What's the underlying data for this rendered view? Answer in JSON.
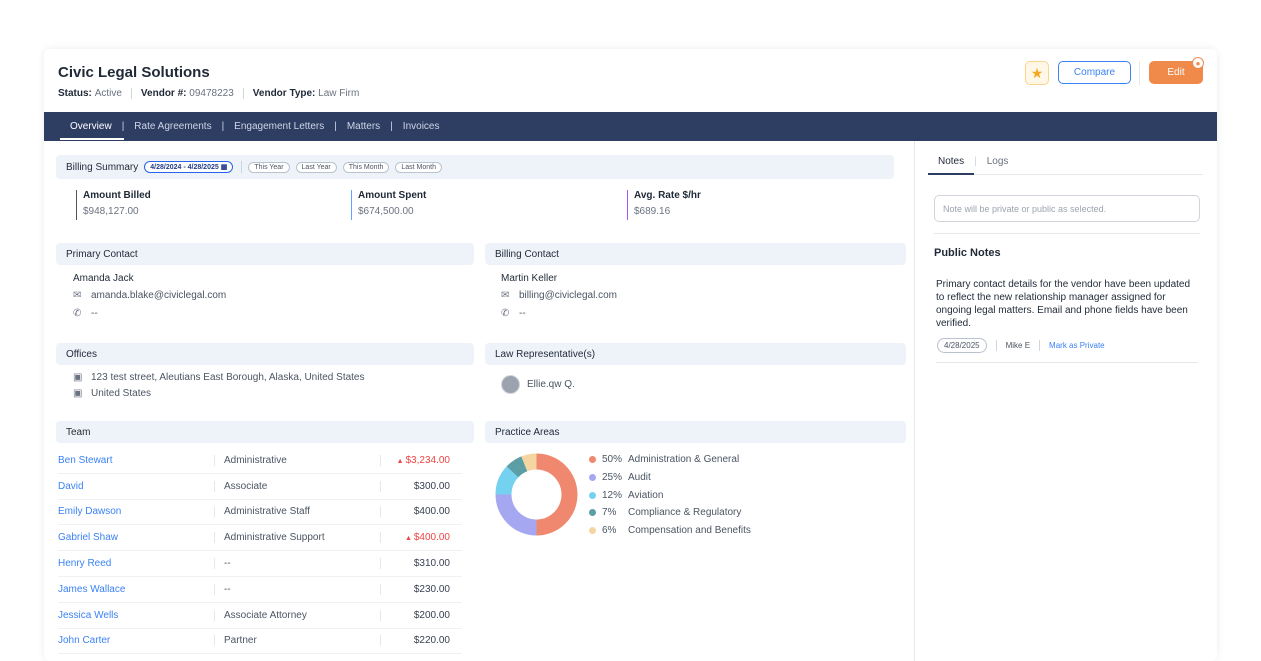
{
  "header": {
    "title": "Civic Legal Solutions",
    "status_label": "Status:",
    "status_value": "Active",
    "vendor_no_label": "Vendor #:",
    "vendor_no_value": "09478223",
    "vendor_type_label": "Vendor Type:",
    "vendor_type_value": "Law Firm",
    "compare_label": "Compare",
    "edit_label": "Edit"
  },
  "nav": {
    "tabs": [
      "Overview",
      "Rate Agreements",
      "Engagement Letters",
      "Matters",
      "Invoices"
    ],
    "active": "Overview"
  },
  "billing": {
    "label": "Billing Summary",
    "date_range": "4/28/2024 - 4/28/2025",
    "filters": [
      "This Year",
      "Last Year",
      "This Month",
      "Last Month"
    ],
    "stats": [
      {
        "label": "Amount Billed",
        "value": "$948,127.00",
        "color": "#555555"
      },
      {
        "label": "Amount Spent",
        "value": "$674,500.00",
        "color": "#60a5fa"
      },
      {
        "label": "Avg. Rate $/hr",
        "value": "$689.16",
        "color": "#a855f7"
      }
    ]
  },
  "primary_contact": {
    "heading": "Primary Contact",
    "name": "Amanda Jack",
    "email": "amanda.blake@civiclegal.com",
    "phone": "--"
  },
  "billing_contact": {
    "heading": "Billing Contact",
    "name": "Martin Keller",
    "email": "billing@civiclegal.com",
    "phone": "--"
  },
  "offices": {
    "heading": "Offices",
    "items": [
      "123 test street, Aleutians East Borough, Alaska, United States",
      "United States"
    ]
  },
  "law_reps": {
    "heading": "Law Representative(s)",
    "items": [
      "Ellie.qw Q."
    ]
  },
  "team": {
    "heading": "Team",
    "rows": [
      {
        "name": "Ben Stewart",
        "role": "Administrative",
        "amount": "$3,234.00",
        "up": true
      },
      {
        "name": "David",
        "role": "Associate",
        "amount": "$300.00",
        "up": false
      },
      {
        "name": "Emily Dawson",
        "role": "Administrative Staff",
        "amount": "$400.00",
        "up": false
      },
      {
        "name": "Gabriel Shaw",
        "role": "Administrative Support",
        "amount": "$400.00",
        "up": true
      },
      {
        "name": "Henry Reed",
        "role": "--",
        "amount": "$310.00",
        "up": false
      },
      {
        "name": "James Wallace",
        "role": "--",
        "amount": "$230.00",
        "up": false
      },
      {
        "name": "Jessica Wells",
        "role": "Associate Attorney",
        "amount": "$200.00",
        "up": false
      },
      {
        "name": "John Carter",
        "role": "Partner",
        "amount": "$220.00",
        "up": false
      }
    ]
  },
  "practice_areas": {
    "heading": "Practice Areas",
    "items": [
      {
        "pct": "50%",
        "value": 50,
        "label": "Administration & General",
        "color": "#f0876f"
      },
      {
        "pct": "25%",
        "value": 25,
        "label": "Audit",
        "color": "#a5a8f0"
      },
      {
        "pct": "12%",
        "value": 12,
        "label": "Aviation",
        "color": "#74d1f0"
      },
      {
        "pct": "7%",
        "value": 7,
        "label": "Compliance & Regulatory",
        "color": "#5b9ea6"
      },
      {
        "pct": "6%",
        "value": 6,
        "label": "Compensation and Benefits",
        "color": "#f5d6a0"
      }
    ]
  },
  "notes": {
    "tabs": [
      "Notes",
      "Logs"
    ],
    "active": "Notes",
    "placeholder": "Note will be private or public as selected.",
    "public_title": "Public Notes",
    "entry_text": "Primary contact details for the vendor have been updated to reflect the new relationship manager assigned for ongoing legal matters. Email and phone fields have been verified.",
    "entry_date": "4/28/2025",
    "entry_author": "Mike E",
    "entry_action": "Mark as Private"
  }
}
